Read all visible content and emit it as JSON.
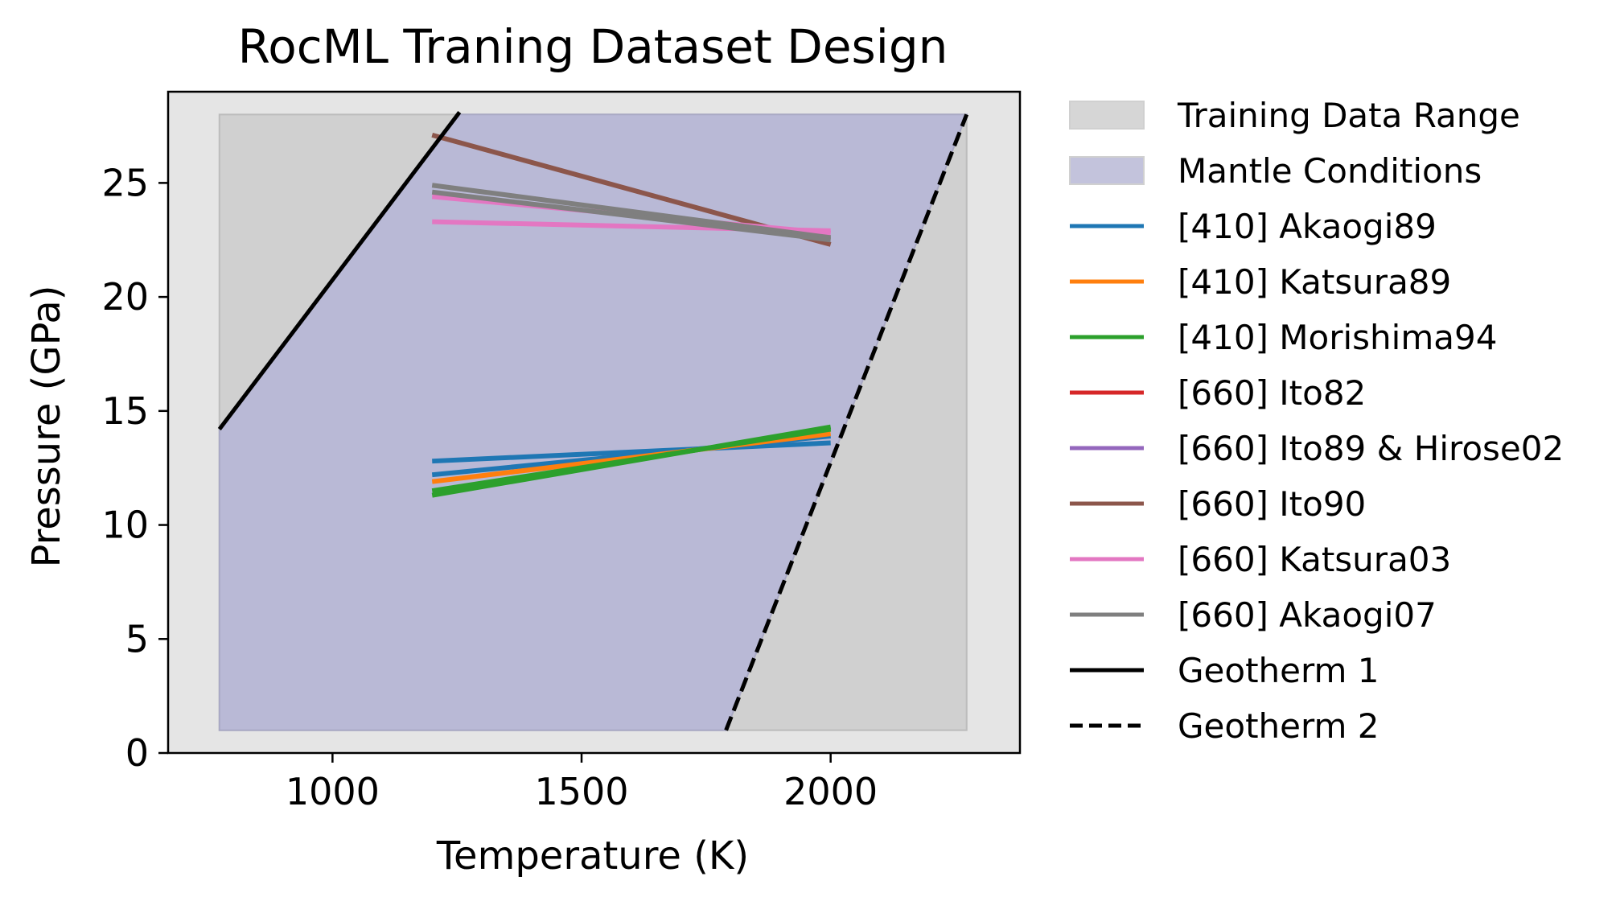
{
  "chart_data": {
    "type": "line",
    "title": "RocML Traning Dataset Design",
    "xlabel": "Temperature (K)",
    "ylabel": "Pressure (GPa)",
    "xlim": [
      670,
      2380
    ],
    "ylim": [
      0,
      29
    ],
    "xticks": [
      1000,
      1500,
      2000
    ],
    "yticks": [
      0,
      5,
      10,
      15,
      20,
      25
    ],
    "grid": false,
    "legend_position": "outside-right",
    "background_color": "#e5e5e5",
    "regions": [
      {
        "name": "Training Data Range",
        "color": "#d0d0d0",
        "x": [
          773,
          2273
        ],
        "y": [
          1,
          28
        ]
      },
      {
        "name": "Mantle Conditions",
        "color": "#b9b9d6",
        "polygon": [
          [
            773,
            1
          ],
          [
            1790,
            1
          ],
          [
            2273,
            28
          ],
          [
            1255,
            28
          ],
          [
            773,
            14.2
          ]
        ]
      }
    ],
    "series": [
      {
        "name": "[410] Akaogi89",
        "color": "#1f77b4",
        "lines": [
          [
            [
              1200,
              12.8
            ],
            [
              2000,
              13.6
            ]
          ],
          [
            [
              1200,
              12.2
            ],
            [
              2000,
              13.9
            ]
          ]
        ]
      },
      {
        "name": "[410] Katsura89",
        "color": "#ff7f0e",
        "lines": [
          [
            [
              1200,
              11.9
            ],
            [
              2000,
              14.0
            ]
          ]
        ]
      },
      {
        "name": "[410] Morishima94",
        "color": "#2ca02c",
        "lines": [
          [
            [
              1200,
              11.3
            ],
            [
              2000,
              14.3
            ]
          ],
          [
            [
              1200,
              11.5
            ],
            [
              2000,
              14.2
            ]
          ]
        ]
      },
      {
        "name": "[660] Ito82",
        "color": "#d62728",
        "lines": []
      },
      {
        "name": "[660] Ito89 & Hirose02",
        "color": "#9467bd",
        "lines": []
      },
      {
        "name": "[660] Ito90",
        "color": "#8c564b",
        "lines": [
          [
            [
              1200,
              27.1
            ],
            [
              2000,
              22.3
            ]
          ]
        ]
      },
      {
        "name": "[660] Katsura03",
        "color": "#e377c2",
        "lines": [
          [
            [
              1200,
              24.4
            ],
            [
              2000,
              22.8
            ]
          ],
          [
            [
              1200,
              23.3
            ],
            [
              2000,
              22.9
            ]
          ]
        ]
      },
      {
        "name": "[660] Akaogi07",
        "color": "#7f7f7f",
        "lines": [
          [
            [
              1200,
              24.9
            ],
            [
              2000,
              22.6
            ]
          ],
          [
            [
              1200,
              24.6
            ],
            [
              2000,
              22.5
            ]
          ]
        ]
      },
      {
        "name": "Geotherm 1",
        "color": "#000000",
        "dash": "solid",
        "lines": [
          [
            [
              773,
              14.2
            ],
            [
              1255,
              28.1
            ]
          ]
        ]
      },
      {
        "name": "Geotherm 2",
        "color": "#000000",
        "dash": "dashed",
        "lines": [
          [
            [
              1790,
              1.0
            ],
            [
              2273,
              28.0
            ]
          ]
        ]
      }
    ]
  }
}
